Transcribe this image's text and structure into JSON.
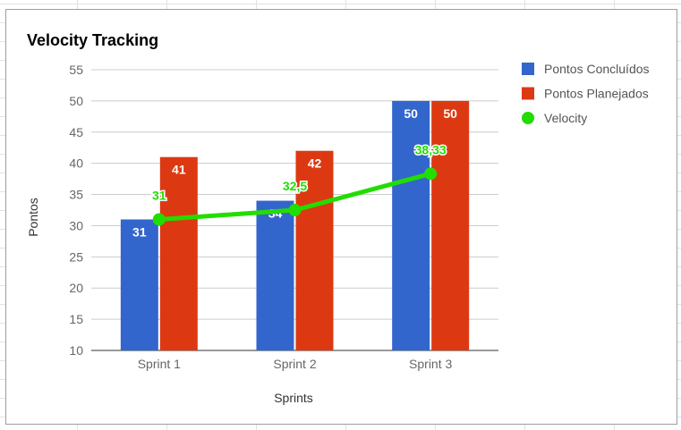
{
  "chart_data": {
    "type": "bar",
    "title": "Velocity Tracking",
    "xlabel": "Sprints",
    "ylabel": "Pontos",
    "categories": [
      "Sprint 1",
      "Sprint 2",
      "Sprint 3"
    ],
    "ylim": [
      10,
      55
    ],
    "yticks": [
      10,
      15,
      20,
      25,
      30,
      35,
      40,
      45,
      50,
      55
    ],
    "grid": true,
    "legend_position": "right",
    "series": [
      {
        "name": "Pontos Concluídos",
        "type": "bar",
        "color": "#3366cc",
        "values": [
          31,
          34,
          50
        ],
        "labels": [
          "31",
          "34",
          "50"
        ]
      },
      {
        "name": "Pontos Planejados",
        "type": "bar",
        "color": "#dc3912",
        "values": [
          41,
          42,
          50
        ],
        "labels": [
          "41",
          "42",
          "50"
        ]
      },
      {
        "name": "Velocity",
        "type": "line",
        "color": "#22dd00",
        "values": [
          31,
          32.5,
          38.33
        ],
        "labels": [
          "31",
          "32,5",
          "38,33"
        ]
      }
    ]
  }
}
